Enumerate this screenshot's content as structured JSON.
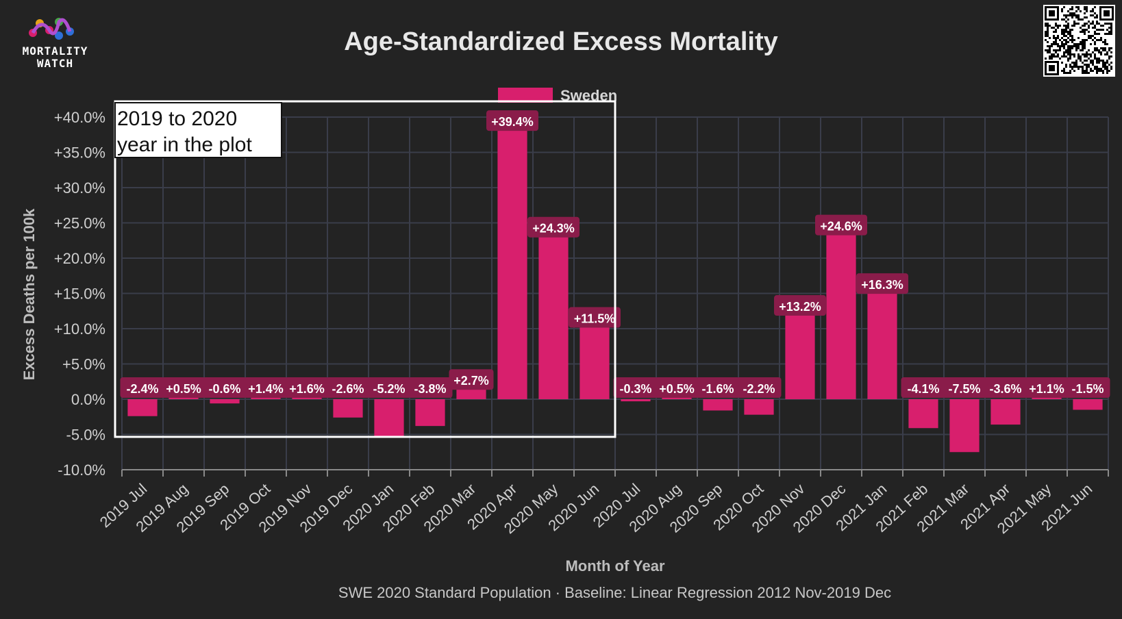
{
  "logo": {
    "line1": "MORTALITY",
    "line2": "WATCH"
  },
  "colors": {
    "background": "#232323",
    "bar": "#d81f6d",
    "label_bg": "#8a1c4a",
    "grid": "#3a3d4a",
    "text": "#d0d0d0"
  },
  "footnote": "SWE 2020 Standard Population · Baseline: Linear Regression 2012 Nov-2019 Dec",
  "annotation": {
    "line1": "2019 to 2020",
    "line2": "year in the plot"
  },
  "chart_data": {
    "type": "bar",
    "title": "Age-Standardized Excess Mortality",
    "xlabel": "Month of Year",
    "ylabel": "Excess Deaths per 100k",
    "legend": {
      "position": "top-center",
      "entries": [
        "Sweden"
      ]
    },
    "grid": true,
    "ylim": [
      -10,
      40
    ],
    "yticks": [
      40,
      35,
      30,
      25,
      20,
      15,
      10,
      5,
      0,
      -5,
      -10
    ],
    "ytick_labels": [
      "+40.0%",
      "+35.0%",
      "+30.0%",
      "+25.0%",
      "+20.0%",
      "+15.0%",
      "+10.0%",
      "+5.0%",
      "0.0%",
      "-5.0%",
      "-10.0%"
    ],
    "categories": [
      "2019 Jul",
      "2019 Aug",
      "2019 Sep",
      "2019 Oct",
      "2019 Nov",
      "2019 Dec",
      "2020 Jan",
      "2020 Feb",
      "2020 Mar",
      "2020 Apr",
      "2020 May",
      "2020 Jun",
      "2020 Jul",
      "2020 Aug",
      "2020 Sep",
      "2020 Oct",
      "2020 Nov",
      "2020 Dec",
      "2021 Jan",
      "2021 Feb",
      "2021 Mar",
      "2021 Apr",
      "2021 May",
      "2021 Jun"
    ],
    "series": [
      {
        "name": "Sweden",
        "values": [
          -2.4,
          0.5,
          -0.6,
          1.4,
          1.6,
          -2.6,
          -5.2,
          -3.8,
          2.7,
          39.4,
          24.3,
          11.5,
          -0.3,
          0.5,
          -1.6,
          -2.2,
          13.2,
          24.6,
          16.3,
          -4.1,
          -7.5,
          -3.6,
          1.1,
          -1.5
        ],
        "labels": [
          "-2.4%",
          "+0.5%",
          "-0.6%",
          "+1.4%",
          "+1.6%",
          "-2.6%",
          "-5.2%",
          "-3.8%",
          "+2.7%",
          "+39.4%",
          "+24.3%",
          "+11.5%",
          "-0.3%",
          "+0.5%",
          "-1.6%",
          "-2.2%",
          "+13.2%",
          "+24.6%",
          "+16.3%",
          "-4.1%",
          "-7.5%",
          "-3.6%",
          "+1.1%",
          "-1.5%"
        ]
      }
    ]
  }
}
